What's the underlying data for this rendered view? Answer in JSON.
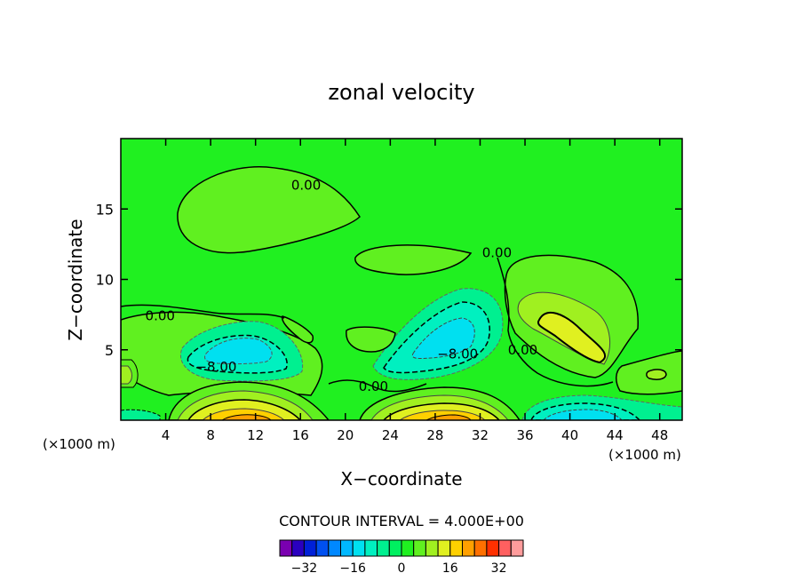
{
  "chart_data": {
    "type": "contour",
    "title": "zonal velocity",
    "xlabel": "X−coordinate",
    "ylabel": "Z−coordinate",
    "x_unit_left": "(×1000 m)",
    "x_unit_right": "(×1000 m)",
    "xlim": [
      0,
      50
    ],
    "ylim": [
      0,
      20
    ],
    "x_ticks": [
      4,
      8,
      12,
      16,
      20,
      24,
      28,
      32,
      36,
      40,
      44,
      48
    ],
    "y_ticks": [
      5,
      10,
      15
    ],
    "grid": false,
    "contour_interval_text": "CONTOUR INTERVAL = 4.000E+00",
    "contour_labels": [
      {
        "text": "0.00",
        "x": 16.5,
        "y": 16.7
      },
      {
        "text": "0.00",
        "x": 33.5,
        "y": 11.9
      },
      {
        "text": "0.00",
        "x": 3.5,
        "y": 7.4
      },
      {
        "text": "0.00",
        "x": 35.8,
        "y": 5.0
      },
      {
        "text": "0.00",
        "x": 22.5,
        "y": 2.4
      },
      {
        "text": "−8.00",
        "x": 8.5,
        "y": 3.8
      },
      {
        "text": "−8.00",
        "x": 30.0,
        "y": 4.7
      }
    ],
    "colorbar": {
      "levels": [
        -36,
        -32,
        -28,
        -24,
        -20,
        -16,
        -12,
        -8,
        -4,
        0,
        4,
        8,
        12,
        16,
        20,
        24,
        28,
        32,
        36
      ],
      "colors": [
        "#7a00b0",
        "#2a00c0",
        "#0020d8",
        "#0050f0",
        "#0088ff",
        "#00b8ff",
        "#00e0f0",
        "#00f0c0",
        "#00f090",
        "#00f060",
        "#20f020",
        "#60f020",
        "#a0f020",
        "#e0f020",
        "#ffd000",
        "#ffa000",
        "#ff7000",
        "#ff3000",
        "#ff6060",
        "#ff9c9c"
      ],
      "tick_labels": [
        "−32",
        "−16",
        "0",
        "16",
        "32"
      ],
      "tick_values": [
        -32,
        -16,
        0,
        16,
        32
      ]
    }
  }
}
